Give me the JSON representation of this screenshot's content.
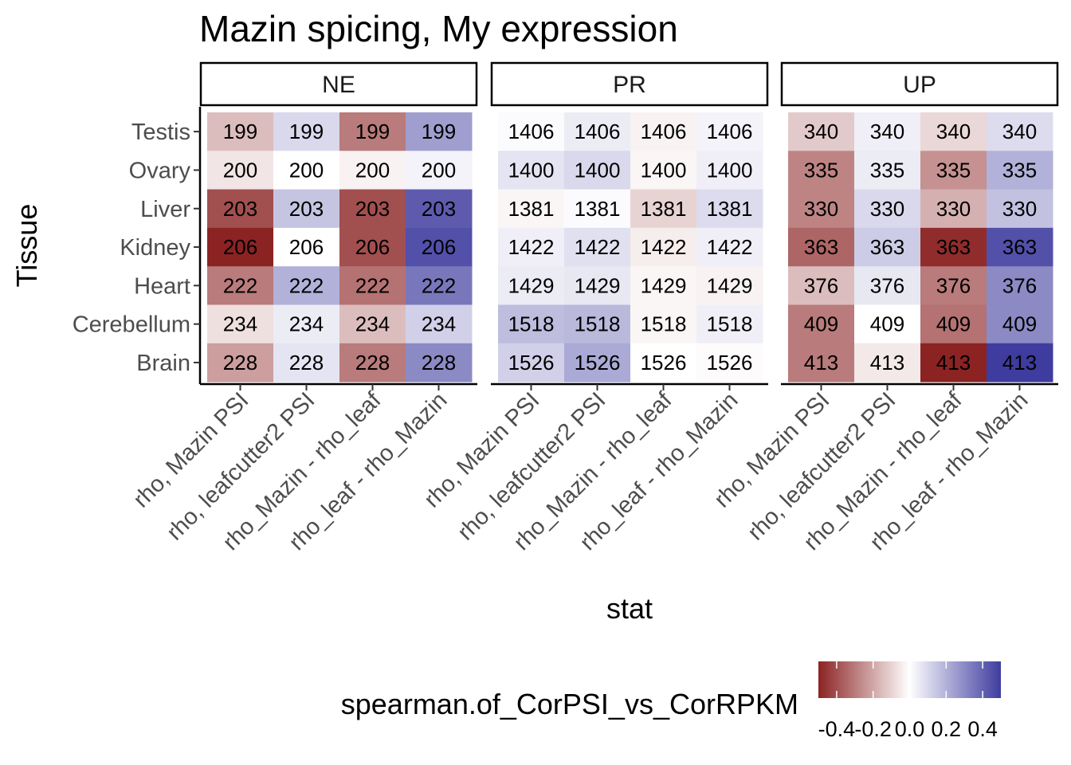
{
  "chart_data": {
    "type": "heatmap",
    "title": "Mazin spicing, My expression",
    "xlabel": "stat",
    "ylabel": "Tissue",
    "facets": [
      "NE",
      "PR",
      "UP"
    ],
    "x_categories": [
      "rho, Mazin PSI",
      "rho, leafcutter2 PSI",
      "rho_Mazin - rho_leaf",
      "rho_leaf - rho_Mazin"
    ],
    "y_categories": [
      "Testis",
      "Ovary",
      "Liver",
      "Kidney",
      "Heart",
      "Cerebellum",
      "Brain"
    ],
    "cell_labels": {
      "NE": [
        199,
        200,
        203,
        206,
        222,
        234,
        228
      ],
      "PR": [
        1406,
        1400,
        1381,
        1422,
        1429,
        1518,
        1526
      ],
      "UP": [
        340,
        335,
        330,
        363,
        376,
        409,
        413
      ]
    },
    "fill_values": {
      "NE": [
        [
          -0.15,
          0.1,
          -0.3,
          0.25
        ],
        [
          -0.06,
          0.0,
          -0.03,
          0.03
        ],
        [
          -0.4,
          0.15,
          -0.4,
          0.42
        ],
        [
          -0.5,
          0.0,
          -0.4,
          0.45
        ],
        [
          -0.3,
          0.2,
          -0.32,
          0.35
        ],
        [
          -0.07,
          0.05,
          -0.15,
          0.12
        ],
        [
          -0.22,
          0.07,
          -0.3,
          0.3
        ]
      ],
      "PR": [
        [
          0.01,
          0.05,
          -0.03,
          0.03
        ],
        [
          0.07,
          0.1,
          -0.02,
          0.04
        ],
        [
          -0.02,
          0.01,
          -0.1,
          0.09
        ],
        [
          0.04,
          0.08,
          -0.04,
          0.04
        ],
        [
          0.05,
          0.06,
          -0.02,
          -0.03
        ],
        [
          0.17,
          0.18,
          -0.02,
          0.04
        ],
        [
          0.12,
          0.22,
          0.0,
          -0.01
        ]
      ],
      "UP": [
        [
          -0.12,
          0.04,
          -0.09,
          0.09
        ],
        [
          -0.28,
          0.05,
          -0.25,
          0.2
        ],
        [
          -0.28,
          0.1,
          -0.18,
          0.16
        ],
        [
          -0.35,
          0.13,
          -0.48,
          0.45
        ],
        [
          -0.15,
          0.06,
          -0.3,
          0.3
        ],
        [
          -0.3,
          0.0,
          -0.32,
          0.3
        ],
        [
          -0.3,
          -0.05,
          -0.5,
          0.5
        ]
      ]
    },
    "legend": {
      "title": "spearman.of_CorPSI_vs_CorRPKM",
      "ticks": [
        "-0.4",
        "-0.2",
        "0.0",
        "0.2",
        "0.4"
      ],
      "range": [
        -0.5,
        0.5
      ],
      "low_color": "#8B2323",
      "mid_color": "#FFFFFF",
      "high_color": "#3F3C9F"
    }
  }
}
